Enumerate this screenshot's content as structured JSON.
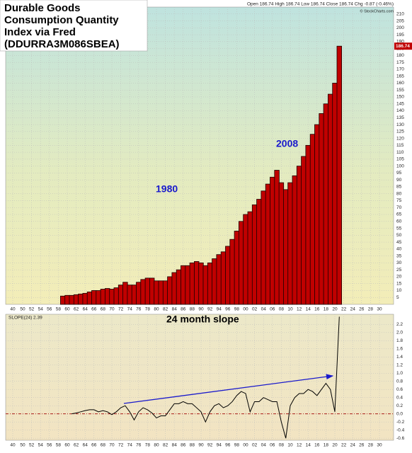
{
  "chart_data": [
    {
      "type": "bar",
      "title_lines": [
        "Durable Goods",
        "Consumption Quantity",
        "Index via Fred",
        "(DDURRA3M086SBEA)"
      ],
      "header": "Open 186.74  High 186.74  Low 186.74  Close 186.74  Chg -0.87 (-0.46%)",
      "source": "© StockCharts.com",
      "last_label": "186.74",
      "annotations": [
        "1980",
        "2008"
      ],
      "color": "#c00000",
      "edge_color": "#1a0000",
      "x": [
        1959,
        1960,
        1961,
        1962,
        1963,
        1964,
        1965,
        1966,
        1967,
        1968,
        1969,
        1970,
        1971,
        1972,
        1973,
        1974,
        1975,
        1976,
        1977,
        1978,
        1979,
        1980,
        1981,
        1982,
        1983,
        1984,
        1985,
        1986,
        1987,
        1988,
        1989,
        1990,
        1991,
        1992,
        1993,
        1994,
        1995,
        1996,
        1997,
        1998,
        1999,
        2000,
        2001,
        2002,
        2003,
        2004,
        2005,
        2006,
        2007,
        2008,
        2009,
        2010,
        2011,
        2012,
        2013,
        2014,
        2015,
        2016,
        2017,
        2018,
        2019,
        2020,
        2021
      ],
      "values": [
        6,
        6.5,
        6.5,
        7,
        7.5,
        8,
        9,
        10,
        10,
        11,
        11.5,
        11,
        12,
        14,
        16,
        14,
        14,
        16,
        18,
        19,
        19,
        17,
        17,
        17,
        20,
        23,
        25,
        28,
        28,
        30,
        31,
        30,
        28,
        30,
        33,
        36,
        38,
        42,
        47,
        53,
        60,
        65,
        67,
        72,
        76,
        82,
        87,
        92,
        97,
        88,
        83,
        88,
        93,
        100,
        107,
        115,
        123,
        130,
        138,
        145,
        152,
        160,
        186.74
      ],
      "xticks": [
        {
          "value": 1940,
          "label": "40"
        },
        {
          "value": 1950,
          "label": "50"
        },
        {
          "value": 1952,
          "label": "52"
        },
        {
          "value": 1954,
          "label": "54"
        },
        {
          "value": 1956,
          "label": "56"
        },
        {
          "value": 1958,
          "label": "58"
        },
        {
          "value": 1960,
          "label": "60"
        },
        {
          "value": 1962,
          "label": "62"
        },
        {
          "value": 1964,
          "label": "64"
        },
        {
          "value": 1966,
          "label": "66"
        },
        {
          "value": 1968,
          "label": "68"
        },
        {
          "value": 1970,
          "label": "70"
        },
        {
          "value": 1972,
          "label": "72"
        },
        {
          "value": 1974,
          "label": "74"
        },
        {
          "value": 1976,
          "label": "76"
        },
        {
          "value": 1978,
          "label": "78"
        },
        {
          "value": 1980,
          "label": "80"
        },
        {
          "value": 1982,
          "label": "82"
        },
        {
          "value": 1984,
          "label": "84"
        },
        {
          "value": 1986,
          "label": "86"
        },
        {
          "value": 1988,
          "label": "88"
        },
        {
          "value": 1990,
          "label": "90"
        },
        {
          "value": 1992,
          "label": "92"
        },
        {
          "value": 1994,
          "label": "94"
        },
        {
          "value": 1996,
          "label": "96"
        },
        {
          "value": 1998,
          "label": "98"
        },
        {
          "value": 2000,
          "label": "00"
        },
        {
          "value": 2002,
          "label": "02"
        },
        {
          "value": 2004,
          "label": "04"
        },
        {
          "value": 2006,
          "label": "06"
        },
        {
          "value": 2008,
          "label": "08"
        },
        {
          "value": 2010,
          "label": "10"
        },
        {
          "value": 2012,
          "label": "12"
        },
        {
          "value": 2014,
          "label": "14"
        },
        {
          "value": 2016,
          "label": "16"
        },
        {
          "value": 2018,
          "label": "18"
        },
        {
          "value": 2020,
          "label": "20"
        },
        {
          "value": 2022,
          "label": "22"
        },
        {
          "value": 2024,
          "label": "24"
        },
        {
          "value": 2026,
          "label": "26"
        },
        {
          "value": 2028,
          "label": "28"
        },
        {
          "value": 2030,
          "label": "30"
        }
      ],
      "ylim": [
        0,
        215
      ],
      "yticks": [
        5,
        10,
        15,
        20,
        25,
        30,
        35,
        40,
        45,
        50,
        55,
        60,
        65,
        70,
        75,
        80,
        85,
        90,
        95,
        100,
        105,
        110,
        115,
        120,
        125,
        130,
        135,
        140,
        145,
        150,
        155,
        160,
        165,
        170,
        175,
        180,
        185,
        190,
        195,
        200,
        205,
        210
      ],
      "grid": true
    },
    {
      "type": "line",
      "indicator": "SLOPE(24) 2.39",
      "annotation": "24 month slope",
      "color": "#000000",
      "zero_color": "#a00000",
      "x": [
        1961,
        1962,
        1963,
        1964,
        1965,
        1966,
        1967,
        1968,
        1969,
        1970,
        1971,
        1972,
        1973,
        1974,
        1975,
        1976,
        1977,
        1978,
        1979,
        1980,
        1981,
        1982,
        1983,
        1984,
        1985,
        1986,
        1987,
        1988,
        1989,
        1990,
        1991,
        1992,
        1993,
        1994,
        1995,
        1996,
        1997,
        1998,
        1999,
        2000,
        2001,
        2002,
        2003,
        2004,
        2005,
        2006,
        2007,
        2008,
        2009,
        2010,
        2011,
        2012,
        2013,
        2014,
        2015,
        2016,
        2017,
        2018,
        2019,
        2020,
        2021
      ],
      "values": [
        0,
        0.02,
        0.05,
        0.08,
        0.1,
        0.1,
        0.05,
        0.08,
        0.05,
        -0.02,
        0.05,
        0.15,
        0.2,
        0.05,
        -0.15,
        0.05,
        0.15,
        0.1,
        0.02,
        -0.1,
        -0.05,
        -0.05,
        0.1,
        0.25,
        0.25,
        0.3,
        0.25,
        0.25,
        0.15,
        0.05,
        -0.2,
        0.05,
        0.2,
        0.25,
        0.15,
        0.2,
        0.3,
        0.45,
        0.55,
        0.5,
        0.05,
        0.3,
        0.3,
        0.4,
        0.35,
        0.3,
        0.3,
        -0.2,
        -0.6,
        0.2,
        0.4,
        0.5,
        0.5,
        0.6,
        0.55,
        0.45,
        0.6,
        0.75,
        0.6,
        0.05,
        2.39
      ],
      "ylim": [
        -0.65,
        2.45
      ],
      "yticks": [
        -0.6,
        -0.4,
        -0.2,
        {
          "value": 0,
          "label": "0.0"
        },
        0.2,
        0.4,
        0.6,
        0.8,
        {
          "value": 1,
          "label": "1.0"
        },
        1.2,
        1.4,
        1.6,
        1.8,
        {
          "value": 2,
          "label": "2.0"
        },
        2.2
      ],
      "grid": true
    }
  ]
}
